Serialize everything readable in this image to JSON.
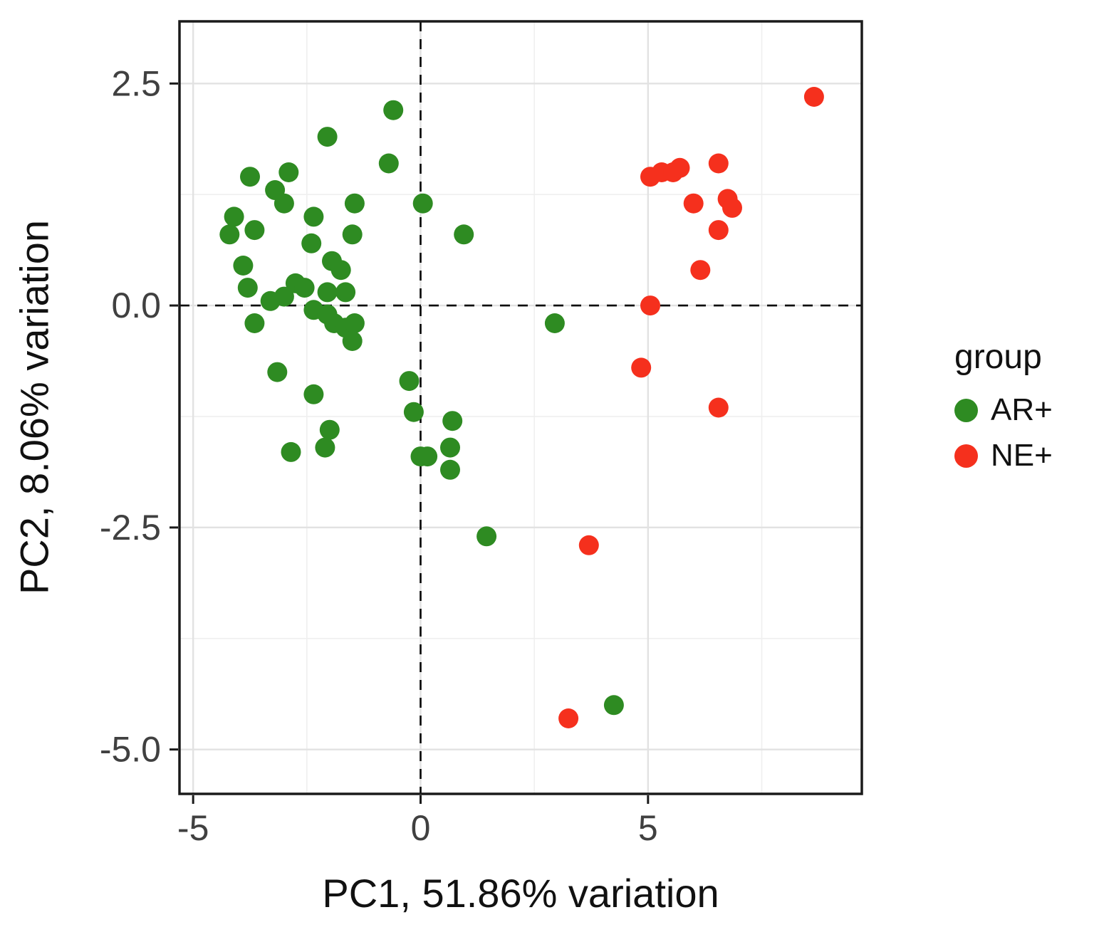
{
  "chart_data": {
    "type": "scatter",
    "title": "",
    "xlabel": "PC1, 51.86% variation",
    "ylabel": "PC2, 8.06% variation",
    "xlim": [
      -5.3,
      9.7
    ],
    "ylim": [
      -5.5,
      3.2
    ],
    "grid": true,
    "panel_background": "#ffffff",
    "major_grid_color": "#e2e2e2",
    "minor_grid_color": "#efefef",
    "border_color": "#1a1a1a",
    "tick_label_color": "#404040",
    "x_ticks": [
      {
        "value": -5,
        "label": "-5"
      },
      {
        "value": 0,
        "label": "0"
      },
      {
        "value": 5,
        "label": "5"
      }
    ],
    "y_ticks": [
      {
        "value": 2.5,
        "label": "2.5"
      },
      {
        "value": 0,
        "label": "0.0"
      },
      {
        "value": -2.5,
        "label": "-2.5"
      },
      {
        "value": -5,
        "label": "-5.0"
      }
    ],
    "x_minor_gridlines": [
      -2.5,
      2.5,
      7.5
    ],
    "y_minor_gridlines": [
      1.25,
      -1.25,
      -3.75
    ],
    "reference_lines": {
      "x": 0,
      "y": 0,
      "style": "dashed",
      "color": "#000000"
    },
    "legend": {
      "title": "group",
      "position": "right",
      "entries": [
        {
          "label": "AR+",
          "color": "#2e8b22"
        },
        {
          "label": "NE+",
          "color": "#f5301d"
        }
      ]
    },
    "series": [
      {
        "name": "AR+",
        "color": "#2e8b22",
        "points": [
          [
            -0.6,
            2.2
          ],
          [
            -2.05,
            1.9
          ],
          [
            -0.7,
            1.6
          ],
          [
            -3.75,
            1.45
          ],
          [
            -2.9,
            1.5
          ],
          [
            -3.2,
            1.3
          ],
          [
            -3.0,
            1.15
          ],
          [
            -2.35,
            1.0
          ],
          [
            -1.45,
            1.15
          ],
          [
            0.05,
            1.15
          ],
          [
            -4.1,
            1.0
          ],
          [
            -4.2,
            0.8
          ],
          [
            -3.65,
            0.85
          ],
          [
            -2.4,
            0.7
          ],
          [
            -1.5,
            0.8
          ],
          [
            0.95,
            0.8
          ],
          [
            -3.9,
            0.45
          ],
          [
            -1.95,
            0.5
          ],
          [
            -1.75,
            0.4
          ],
          [
            -2.75,
            0.25
          ],
          [
            -2.55,
            0.2
          ],
          [
            -3.8,
            0.2
          ],
          [
            -3.3,
            0.05
          ],
          [
            -3.0,
            0.1
          ],
          [
            -2.05,
            0.15
          ],
          [
            -1.65,
            0.15
          ],
          [
            -3.65,
            -0.2
          ],
          [
            -2.35,
            -0.05
          ],
          [
            -2.05,
            -0.1
          ],
          [
            -1.9,
            -0.2
          ],
          [
            -1.65,
            -0.25
          ],
          [
            -1.45,
            -0.2
          ],
          [
            -1.5,
            -0.4
          ],
          [
            2.95,
            -0.2
          ],
          [
            -3.15,
            -0.75
          ],
          [
            -0.25,
            -0.85
          ],
          [
            -2.35,
            -1.0
          ],
          [
            -0.15,
            -1.2
          ],
          [
            0.7,
            -1.3
          ],
          [
            -2.0,
            -1.4
          ],
          [
            -2.1,
            -1.6
          ],
          [
            -2.85,
            -1.65
          ],
          [
            0.0,
            -1.7
          ],
          [
            0.15,
            -1.7
          ],
          [
            0.65,
            -1.6
          ],
          [
            0.65,
            -1.85
          ],
          [
            1.45,
            -2.6
          ],
          [
            4.25,
            -4.5
          ]
        ]
      },
      {
        "name": "NE+",
        "color": "#f5301d",
        "points": [
          [
            8.65,
            2.35
          ],
          [
            5.05,
            1.45
          ],
          [
            5.3,
            1.5
          ],
          [
            5.55,
            1.5
          ],
          [
            5.7,
            1.55
          ],
          [
            6.55,
            1.6
          ],
          [
            6.0,
            1.15
          ],
          [
            6.75,
            1.2
          ],
          [
            6.85,
            1.1
          ],
          [
            6.55,
            0.85
          ],
          [
            6.15,
            0.4
          ],
          [
            5.05,
            0.0
          ],
          [
            4.85,
            -0.7
          ],
          [
            6.55,
            -1.15
          ],
          [
            3.7,
            -2.7
          ],
          [
            3.25,
            -4.65
          ]
        ]
      }
    ]
  }
}
